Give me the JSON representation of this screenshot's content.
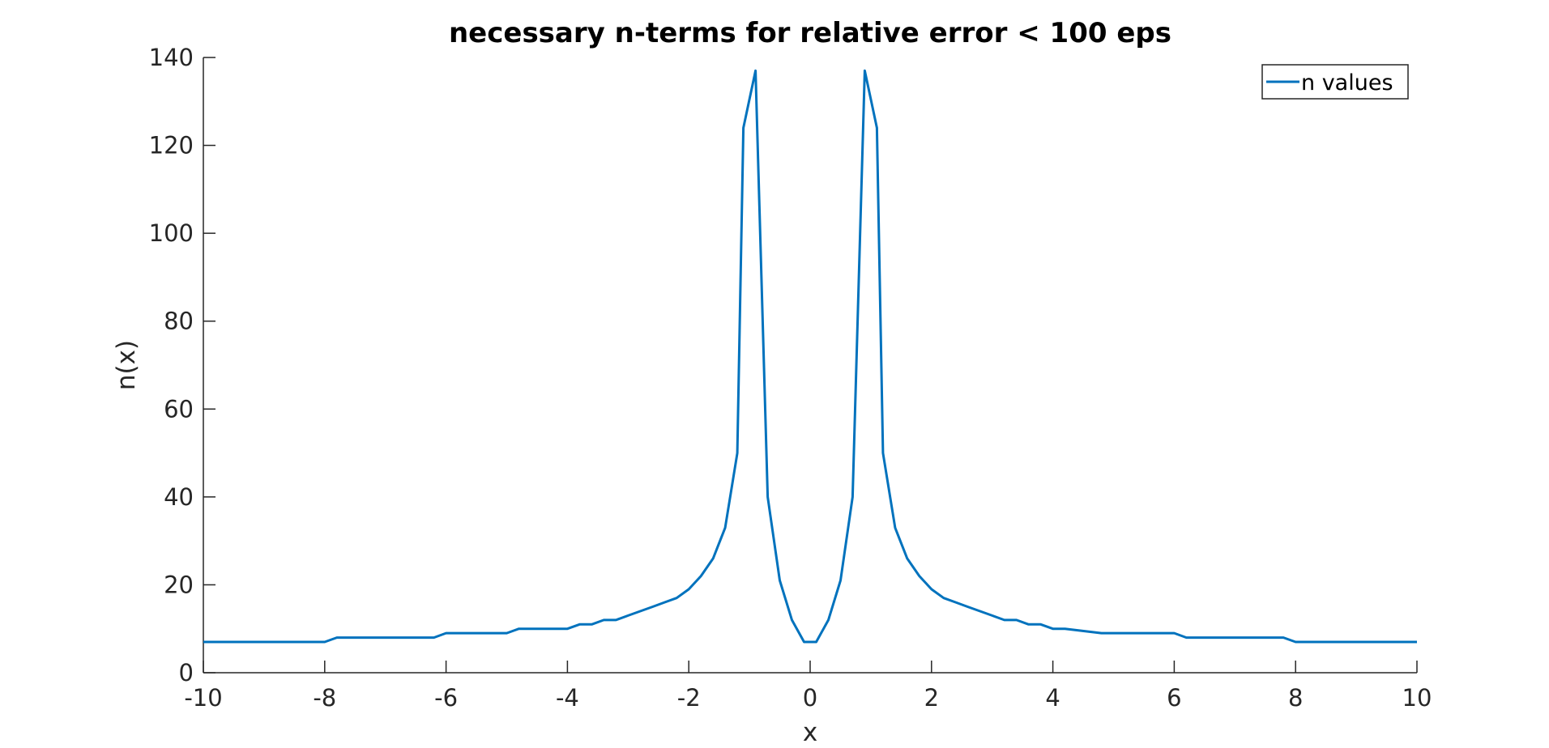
{
  "chart_data": {
    "type": "line",
    "title": "necessary n-terms for relative error < 100 eps",
    "xlabel": "x",
    "ylabel": "n(x)",
    "xlim": [
      -10,
      10
    ],
    "ylim": [
      0,
      140
    ],
    "x_ticks": [
      "-10",
      "-8",
      "-6",
      "-4",
      "-2",
      "0",
      "2",
      "4",
      "6",
      "8",
      "10"
    ],
    "y_ticks": [
      "0",
      "20",
      "40",
      "60",
      "80",
      "100",
      "120",
      "140"
    ],
    "grid": false,
    "legend_position": "top-right",
    "line_color": "#0072BD",
    "series": [
      {
        "name": "n values",
        "x": [
          -10,
          -8.0,
          -7.8,
          -6.2,
          -6.0,
          -5.0,
          -4.8,
          -4.0,
          -3.8,
          -3.6,
          -3.4,
          -3.2,
          -3.0,
          -2.8,
          -2.6,
          -2.4,
          -2.2,
          -2.0,
          -1.8,
          -1.6,
          -1.4,
          -1.2,
          -1.1,
          -0.9,
          -0.7,
          -0.5,
          -0.3,
          -0.1,
          0.1,
          0.3,
          0.5,
          0.7,
          0.9,
          1.1,
          1.2,
          1.4,
          1.6,
          1.8,
          2.0,
          2.2,
          2.4,
          2.6,
          2.8,
          3.0,
          3.2,
          3.4,
          3.6,
          3.8,
          4.0,
          4.2,
          4.8,
          5.0,
          6.0,
          6.2,
          7.8,
          8.0,
          10
        ],
        "y": [
          7,
          7,
          8,
          8,
          9,
          9,
          10,
          10,
          11,
          11,
          12,
          12,
          13,
          14,
          15,
          16,
          17,
          19,
          22,
          26,
          33,
          50,
          124,
          137,
          40,
          21,
          12,
          7,
          7,
          12,
          21,
          40,
          137,
          124,
          50,
          33,
          26,
          22,
          19,
          17,
          16,
          15,
          14,
          13,
          12,
          12,
          11,
          11,
          10,
          10,
          9,
          9,
          9,
          8,
          8,
          7,
          7
        ]
      }
    ]
  }
}
